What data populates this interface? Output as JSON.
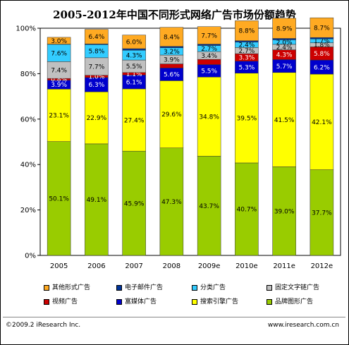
{
  "title": "2005-2012年中国不同形式网络广告市场份额趋势",
  "footer": {
    "copyright": "©2009.2 iResearch Inc.",
    "website": "www.iresearch.com.cn"
  },
  "chart_data": {
    "type": "bar",
    "stacked": true,
    "title": "2005-2012年中国不同形式网络广告市场份额趋势",
    "categories": [
      "2005",
      "2006",
      "2007",
      "2008",
      "2009e",
      "2010e",
      "2011e",
      "2012e"
    ],
    "ylim": [
      0,
      100
    ],
    "yticks": [
      "0%",
      "20%",
      "40%",
      "60%",
      "80%",
      "100%"
    ],
    "legend_position": "bottom",
    "series": [
      {
        "name": "品牌图形广告",
        "color": "#99cc00",
        "values": [
          50.1,
          49.1,
          45.9,
          47.3,
          43.7,
          40.7,
          39.0,
          37.7
        ],
        "labels": [
          "50.1%",
          "49.1%",
          "45.9%",
          "47.3%",
          "43.7%",
          "40.7%",
          "39.0%",
          "37.7%"
        ]
      },
      {
        "name": "搜索引擎广告",
        "color": "#ffff00",
        "values": [
          23.1,
          22.9,
          27.4,
          29.6,
          34.8,
          39.5,
          41.5,
          42.1
        ],
        "labels": [
          "23.1%",
          "22.9%",
          "27.4%",
          "29.6%",
          "34.8%",
          "39.5%",
          "41.5%",
          "42.1%"
        ]
      },
      {
        "name": "富媒体广告",
        "color": "#0000cc",
        "values": [
          3.9,
          6.3,
          6.1,
          5.6,
          5.5,
          5.3,
          5.7,
          6.2
        ],
        "labels": [
          "3.9%",
          "6.3%",
          "6.1%",
          "5.6%",
          "5.5%",
          "5.3%",
          "5.7%",
          "6.2%"
        ]
      },
      {
        "name": "视频广告",
        "color": "#cc0000",
        "values": [
          0.8,
          1.0,
          1.1,
          1.8,
          2.3,
          3.3,
          4.3,
          5.8
        ],
        "labels": [
          "0.8%",
          "1.0%",
          "1.1%",
          "",
          "",
          "3.3%",
          "4.3%",
          "5.8%"
        ]
      },
      {
        "name": "固定文字链广告",
        "color": "#c0c0c0",
        "values": [
          7.4,
          7.7,
          5.5,
          3.9,
          3.4,
          2.7,
          2.4,
          1.8
        ],
        "labels": [
          "7.4%",
          "7.7%",
          "5.5%",
          "3.9%",
          "3.4%",
          "2.7%",
          "2.4%",
          "1.8%"
        ]
      },
      {
        "name": "分类广告",
        "color": "#33ccff",
        "values": [
          7.6,
          5.8,
          4.3,
          3.2,
          2.7,
          2.4,
          2.0,
          1.7
        ],
        "labels": [
          "7.6%",
          "5.8%",
          "4.3%",
          "3.2%",
          "2.7%",
          "2.4%",
          "2.0%",
          "1.7%"
        ]
      },
      {
        "name": "电子邮件广告",
        "color": "#003399",
        "values": [
          0.1,
          0.3,
          0.7,
          0.6,
          0.6,
          0.6,
          0.6,
          0.6
        ],
        "labels": [
          "",
          "",
          "",
          "",
          "",
          "",
          "",
          ""
        ]
      },
      {
        "name": "其他形式广告",
        "color": "#ffaa22",
        "values": [
          3.0,
          6.4,
          6.0,
          8.4,
          7.7,
          8.8,
          8.9,
          8.7
        ],
        "labels": [
          "3.0%",
          "6.4%",
          "6.0%",
          "8.4%",
          "7.7%",
          "8.8%",
          "8.9%",
          "8.7%"
        ]
      }
    ]
  },
  "legend": [
    {
      "label": "其他形式广告",
      "color": "#ffaa22"
    },
    {
      "label": "电子邮件广告",
      "color": "#003399"
    },
    {
      "label": "分类广告",
      "color": "#33ccff"
    },
    {
      "label": "固定文字链广告",
      "color": "#c0c0c0"
    },
    {
      "label": "视频广告",
      "color": "#cc0000"
    },
    {
      "label": "富媒体广告",
      "color": "#0000cc"
    },
    {
      "label": "搜索引擎广告",
      "color": "#ffff00"
    },
    {
      "label": "品牌图形广告",
      "color": "#99cc00"
    }
  ]
}
